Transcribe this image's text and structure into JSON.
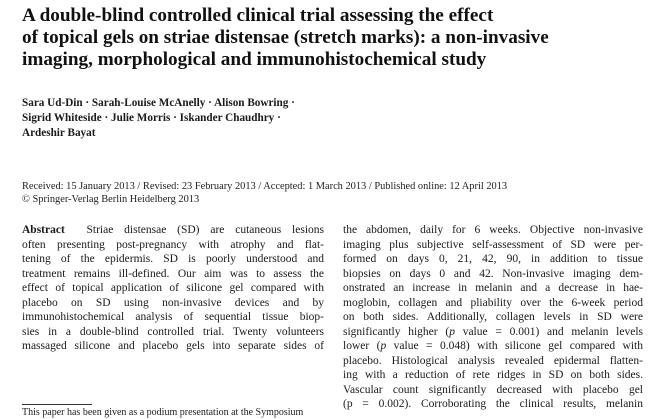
{
  "title_lines": [
    "A double-blind controlled clinical trial assessing the effect",
    "of topical gels on striae distensae (stretch marks): a non-invasive",
    "imaging, morphological and immunohistochemical study"
  ],
  "author_lines": [
    "Sara Ud-Din · Sarah-Louise McAnelly · Alison Bowring ·",
    "Sigrid Whiteside · Julie Morris · Iskander Chaudhry ·",
    "Ardeshir Bayat"
  ],
  "dates_line": "Received: 15 January 2013 / Revised: 23 February 2013 / Accepted: 1 March 2013 / Published online: 12 April 2013",
  "copyright_line": "© Springer-Verlag Berlin Heidelberg 2013",
  "abstract": {
    "heading": "Abstract",
    "left_lines": [
      "Striae distensae (SD) are cutaneous lesions",
      "often presenting post-pregnancy with atrophy and flat-",
      "tening of the epidermis. SD is poorly understood and",
      "treatment remains ill-defined. Our aim was to assess the",
      "effect of topical application of silicone gel compared with",
      "placebo on SD using non-invasive devices and by",
      "immunohistochemical analysis of sequential tissue biop-",
      "sies in a double-blind controlled trial. Twenty volunteers",
      "massaged silicone and placebo gels into separate sides of"
    ],
    "right_lines": [
      "the abdomen, daily for 6 weeks. Objective non-invasive",
      "imaging plus subjective self-assessment of SD were per-",
      "formed on days 0, 21, 42, 90, in addition to tissue",
      "biopsies on days 0 and 42. Non-invasive imaging dem-",
      "onstrated an increase in melanin and a decrease in hae-",
      "moglobin, collagen and pliability over the 6-week period",
      "on both sides. Additionally, collagen levels in SD were",
      "significantly higher (",
      "p",
      " value = 0.001) and melanin levels",
      "lower (",
      " value = 0.048) with silicone gel compared with",
      "placebo. Histological analysis revealed epidermal flatten-",
      "ing with a reduction of rete ridges in SD on both sides.",
      "Vascular count significantly decreased with placebo gel",
      "(p = 0.002). Corroborating the clinical results, melanin"
    ]
  },
  "footnote": "This paper has been given as a podium presentation at the Symposium"
}
